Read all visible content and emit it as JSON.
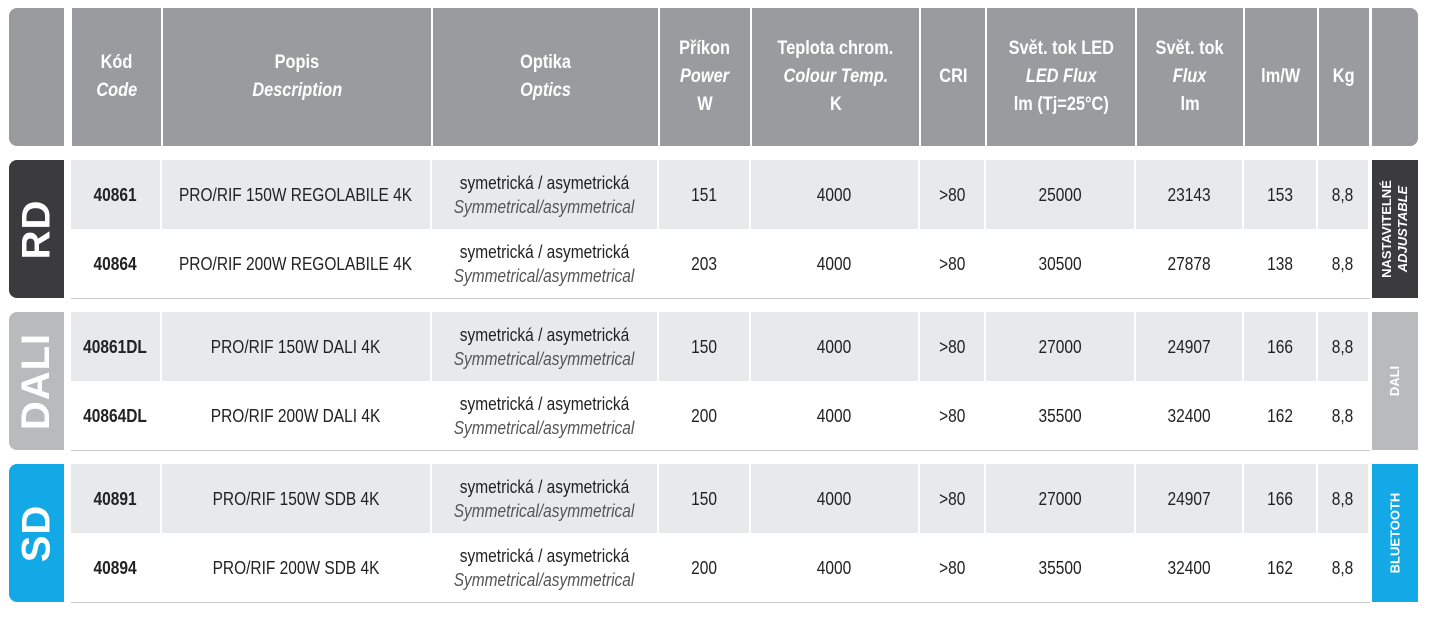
{
  "colors": {
    "header": "#9a9b9e",
    "rd": "#3b3b3d",
    "dali": "#b9babc",
    "sdb": "#12a9e6",
    "row_alt": "#e8e9ea"
  },
  "header": [
    {
      "l1": "Kód",
      "l2": "Code"
    },
    {
      "l1": "Popis",
      "l2": "Description"
    },
    {
      "l1": "Optika",
      "l2": "Optics"
    },
    {
      "l1": "Příkon",
      "l2": "Power",
      "l3": "W"
    },
    {
      "l1": "Teplota chrom.",
      "l2": "Colour Temp.",
      "l3": "K"
    },
    {
      "l1": "CRI"
    },
    {
      "l1": "Svět. tok LED",
      "l2": "LED Flux",
      "l3": "lm (Tj=25°C)"
    },
    {
      "l1": "Svět. tok",
      "l2": "Flux",
      "l3": "lm"
    },
    {
      "l1": "lm/W"
    },
    {
      "l1": "Kg"
    }
  ],
  "groups": [
    {
      "logo": "RD",
      "side1": "NASTAVITELNÉ",
      "side2": "ADJUSTABLE",
      "rows": [
        {
          "code": "40861",
          "desc": "PRO/RIF 150W REGOLABILE 4K",
          "opt1": "symetrická / asymetrická",
          "opt2": "Symmetrical/asymmetrical",
          "power": "151",
          "temp": "4000",
          "cri": ">80",
          "ledflux": "25000",
          "flux": "23143",
          "lmw": "153",
          "kg": "8,8"
        },
        {
          "code": "40864",
          "desc": "PRO/RIF 200W REGOLABILE 4K",
          "opt1": "symetrická / asymetrická",
          "opt2": "Symmetrical/asymmetrical",
          "power": "203",
          "temp": "4000",
          "cri": ">80",
          "ledflux": "30500",
          "flux": "27878",
          "lmw": "138",
          "kg": "8,8"
        }
      ]
    },
    {
      "logo": "DALI",
      "side1": "DALI",
      "rows": [
        {
          "code": "40861DL",
          "desc": "PRO/RIF 150W DALI 4K",
          "opt1": "symetrická / asymetrická",
          "opt2": "Symmetrical/asymmetrical",
          "power": "150",
          "temp": "4000",
          "cri": ">80",
          "ledflux": "27000",
          "flux": "24907",
          "lmw": "166",
          "kg": "8,8"
        },
        {
          "code": "40864DL",
          "desc": "PRO/RIF 200W DALI 4K",
          "opt1": "symetrická / asymetrická",
          "opt2": "Symmetrical/asymmetrical",
          "power": "200",
          "temp": "4000",
          "cri": ">80",
          "ledflux": "35500",
          "flux": "32400",
          "lmw": "162",
          "kg": "8,8"
        }
      ]
    },
    {
      "logo": "SD",
      "side1": "BLUETOOTH",
      "rows": [
        {
          "code": "40891",
          "desc": "PRO/RIF 150W SDB 4K",
          "opt1": "symetrická / asymetrická",
          "opt2": "Symmetrical/asymmetrical",
          "power": "150",
          "temp": "4000",
          "cri": ">80",
          "ledflux": "27000",
          "flux": "24907",
          "lmw": "166",
          "kg": "8,8"
        },
        {
          "code": "40894",
          "desc": "PRO/RIF 200W SDB 4K",
          "opt1": "symetrická / asymetrická",
          "opt2": "Symmetrical/asymmetrical",
          "power": "200",
          "temp": "4000",
          "cri": ">80",
          "ledflux": "35500",
          "flux": "32400",
          "lmw": "162",
          "kg": "8,8"
        }
      ]
    }
  ]
}
